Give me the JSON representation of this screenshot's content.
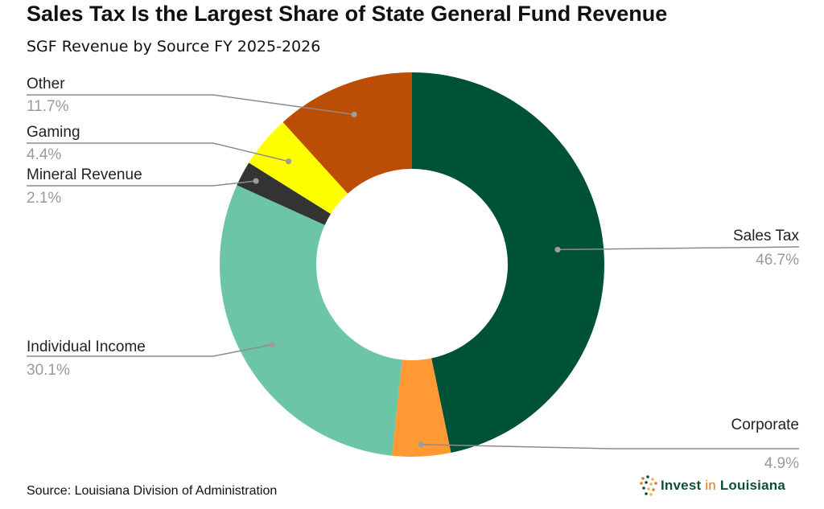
{
  "chart_data": {
    "type": "pie",
    "style": "donut",
    "title": "Sales Tax Is the Largest Share of State General Fund Revenue",
    "subtitle": "SGF Revenue by Source FY 2025-2026",
    "unit": "%",
    "categories": [
      "Sales Tax",
      "Corporate",
      "Individual Income",
      "Mineral Revenue",
      "Gaming",
      "Other"
    ],
    "values": [
      46.7,
      4.9,
      30.1,
      2.1,
      4.4,
      11.7
    ],
    "labels": [
      "46.7%",
      "4.9%",
      "30.1%",
      "2.1%",
      "4.4%",
      "11.7%"
    ],
    "colors": [
      "#005236",
      "#ff9933",
      "#6cc5a6",
      "#333333",
      "#ffff00",
      "#bb4d05"
    ],
    "source": "Source: Louisiana Division of Administration"
  },
  "logo": {
    "text_before": "Invest ",
    "text_in": "in",
    "text_after": " Louisiana",
    "colors": [
      "#e07b21",
      "#0d4f3a",
      "#f2b544"
    ]
  }
}
